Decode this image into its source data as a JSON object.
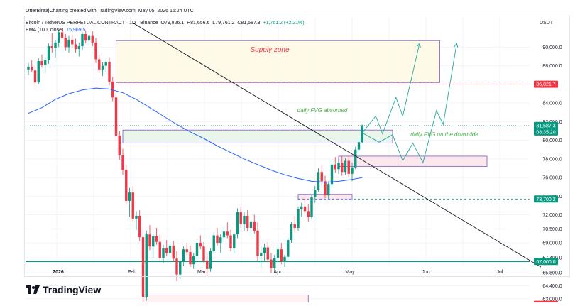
{
  "header": {
    "credit": "OtterBiraajCharting created with TradingView.com, May 05, 2026 15:24 UTC",
    "symbol": "Bitcoin / TetherUS PERPETUAL CONTRACT · 1D · Binance",
    "open_label": "O",
    "open": "79,826.1",
    "high_label": "H",
    "high": "81,656.6",
    "low_label": "L",
    "low": "79,761.2",
    "close_label": "C",
    "close": "81,587.3",
    "change": "+1,761.2 (+2.21%)",
    "ema_label": "EMA (100, close)",
    "ema_value": "75,969.5",
    "currency": "USDT"
  },
  "brand": {
    "name": "TradingView",
    "logo_icon": "tradingview-logo-icon"
  },
  "colors": {
    "up": "#089981",
    "down": "#f23645",
    "ema": "#2962ff",
    "trendline": "#131722",
    "support": "#089981",
    "box_border": "#7e57c2",
    "supply_text": "#f23645",
    "fvg_text": "#4caf50",
    "path": "#26a69a"
  },
  "chart_data": {
    "type": "candlestick",
    "timeframe": "1D",
    "x_tick_labels": [
      "2026",
      "Feb",
      "Mar",
      "Apr",
      "May",
      "Jun",
      "Jul"
    ],
    "y_tick_labels": [
      "90,000.0",
      "88,000.0",
      "84,000.0",
      "82,000.0",
      "80,000.0",
      "78,000.0",
      "76,000.0",
      "74,000.0",
      "72,000.0",
      "70,500.0",
      "69,000.0",
      "67,400.0",
      "65,800.0",
      "64,400.0",
      "63,000.0"
    ],
    "ylim": [
      61800,
      92000
    ],
    "price_labels": [
      {
        "text": "86,021.7",
        "value": 86021.7,
        "color": "#f23645"
      },
      {
        "text": "81,587.3",
        "value": 81587.3,
        "color": "#089981"
      },
      {
        "text": "08:35:20",
        "value": 80900,
        "color": "#089981"
      },
      {
        "text": "73,700.2",
        "value": 73700.2,
        "color": "#089981"
      },
      {
        "text": "67,000.0",
        "value": 67000,
        "color": "#089981"
      },
      {
        "text": "62,401.7",
        "value": 62401.7,
        "color": "#f23645"
      }
    ],
    "candles": [
      [
        87600,
        88300,
        87000,
        87900
      ],
      [
        87900,
        88600,
        87300,
        87500
      ],
      [
        87500,
        88000,
        85800,
        86200
      ],
      [
        86200,
        88800,
        86000,
        88500
      ],
      [
        88500,
        89200,
        87800,
        88100
      ],
      [
        88100,
        88900,
        87200,
        88600
      ],
      [
        88600,
        90400,
        88200,
        90100
      ],
      [
        90100,
        91500,
        89400,
        89900
      ],
      [
        89900,
        90800,
        88900,
        90500
      ],
      [
        90500,
        91900,
        90000,
        91600
      ],
      [
        91600,
        92000,
        90700,
        91000
      ],
      [
        91000,
        91400,
        89600,
        90000
      ],
      [
        90000,
        91200,
        89400,
        90800
      ],
      [
        90800,
        91300,
        89900,
        90300
      ],
      [
        90300,
        90900,
        89400,
        89800
      ],
      [
        89800,
        90500,
        89000,
        90100
      ],
      [
        90100,
        91600,
        89700,
        91400
      ],
      [
        91400,
        91800,
        90400,
        90700
      ],
      [
        90700,
        91500,
        90200,
        91200
      ],
      [
        91200,
        91700,
        90100,
        90500
      ],
      [
        90500,
        91000,
        88300,
        88700
      ],
      [
        88700,
        89200,
        87200,
        87600
      ],
      [
        87600,
        88400,
        86900,
        88000
      ],
      [
        88000,
        88700,
        87300,
        88400
      ],
      [
        88400,
        88900,
        85900,
        86300
      ],
      [
        86300,
        86800,
        84200,
        84600
      ],
      [
        84600,
        85100,
        80000,
        80500
      ],
      [
        80500,
        81000,
        77900,
        78400
      ],
      [
        78400,
        79100,
        76300,
        76800
      ],
      [
        76800,
        77300,
        73100,
        73500
      ],
      [
        73500,
        74900,
        71800,
        74400
      ],
      [
        74400,
        75100,
        71200,
        71600
      ],
      [
        71600,
        72400,
        70400,
        71900
      ],
      [
        71900,
        72500,
        69200,
        69600
      ],
      [
        69600,
        70400,
        62400,
        63200
      ],
      [
        63200,
        70300,
        62800,
        69900
      ],
      [
        69900,
        70900,
        68200,
        68600
      ],
      [
        68600,
        70000,
        67400,
        69700
      ],
      [
        69700,
        70600,
        68800,
        69100
      ],
      [
        69100,
        69900,
        67100,
        67400
      ],
      [
        67400,
        68800,
        66800,
        68400
      ],
      [
        68400,
        69300,
        67600,
        67900
      ],
      [
        67900,
        68900,
        67200,
        68700
      ],
      [
        68700,
        69200,
        67000,
        67300
      ],
      [
        67300,
        68100,
        64900,
        65600
      ],
      [
        65600,
        67400,
        65100,
        67000
      ],
      [
        67000,
        68600,
        66500,
        68300
      ],
      [
        68300,
        69000,
        67600,
        68000
      ],
      [
        68000,
        68700,
        66400,
        66700
      ],
      [
        66700,
        67900,
        66200,
        67600
      ],
      [
        67600,
        69300,
        67100,
        69000
      ],
      [
        69000,
        69800,
        68300,
        68600
      ],
      [
        68600,
        69100,
        66800,
        67100
      ],
      [
        67100,
        68000,
        65400,
        66200
      ],
      [
        66200,
        68400,
        65900,
        68100
      ],
      [
        68100,
        70100,
        67800,
        69800
      ],
      [
        69800,
        70600,
        68700,
        69000
      ],
      [
        69000,
        69900,
        67900,
        69600
      ],
      [
        69600,
        70700,
        69100,
        70200
      ],
      [
        70200,
        71200,
        69500,
        69800
      ],
      [
        69800,
        70400,
        68100,
        68400
      ],
      [
        68400,
        70100,
        67900,
        69900
      ],
      [
        69900,
        72700,
        69500,
        72300
      ],
      [
        72300,
        72900,
        70600,
        71000
      ],
      [
        71000,
        72300,
        70300,
        71900
      ],
      [
        71900,
        72500,
        70200,
        70600
      ],
      [
        70600,
        71600,
        69800,
        71300
      ],
      [
        71300,
        72000,
        70000,
        70300
      ],
      [
        70300,
        71200,
        67100,
        67600
      ],
      [
        67600,
        68600,
        66300,
        67900
      ],
      [
        67900,
        68900,
        67100,
        68500
      ],
      [
        68500,
        69100,
        66900,
        67200
      ],
      [
        67200,
        67900,
        65800,
        66300
      ],
      [
        66300,
        67700,
        65900,
        67400
      ],
      [
        67400,
        68700,
        66900,
        68300
      ],
      [
        68300,
        69000,
        66700,
        67000
      ],
      [
        67000,
        67700,
        66400,
        67500
      ],
      [
        67500,
        69600,
        67200,
        69300
      ],
      [
        69300,
        71300,
        69000,
        71000
      ],
      [
        71000,
        71900,
        70100,
        70600
      ],
      [
        70600,
        72900,
        70300,
        72600
      ],
      [
        72600,
        73300,
        71800,
        72900
      ],
      [
        72900,
        73900,
        72000,
        72400
      ],
      [
        72400,
        73100,
        71300,
        71800
      ],
      [
        71800,
        74200,
        71600,
        73900
      ],
      [
        73900,
        75100,
        73300,
        74700
      ],
      [
        74700,
        77000,
        74500,
        76600
      ],
      [
        76600,
        77300,
        75200,
        75600
      ],
      [
        75600,
        76200,
        73800,
        74100
      ],
      [
        74100,
        75600,
        73700,
        75300
      ],
      [
        75300,
        77800,
        74900,
        77400
      ],
      [
        77400,
        78200,
        76500,
        76900
      ],
      [
        76900,
        78000,
        76400,
        77600
      ],
      [
        77600,
        78300,
        76200,
        76600
      ],
      [
        76600,
        78100,
        76300,
        77800
      ],
      [
        77800,
        78400,
        76000,
        76400
      ],
      [
        76400,
        77600,
        75600,
        77100
      ],
      [
        77100,
        79300,
        76900,
        79000
      ],
      [
        79000,
        80300,
        78500,
        79800
      ],
      [
        79800,
        81700,
        79700,
        81600
      ]
    ],
    "ema": [
      [
        0,
        82900
      ],
      [
        4,
        83500
      ],
      [
        8,
        84400
      ],
      [
        12,
        85000
      ],
      [
        16,
        85400
      ],
      [
        20,
        85600
      ],
      [
        24,
        85500
      ],
      [
        28,
        85100
      ],
      [
        32,
        84400
      ],
      [
        36,
        83500
      ],
      [
        40,
        82600
      ],
      [
        44,
        81700
      ],
      [
        48,
        80900
      ],
      [
        52,
        80200
      ],
      [
        56,
        79400
      ],
      [
        60,
        78700
      ],
      [
        64,
        78000
      ],
      [
        68,
        77400
      ],
      [
        72,
        76800
      ],
      [
        76,
        76300
      ],
      [
        80,
        75900
      ],
      [
        84,
        75600
      ],
      [
        88,
        75500
      ],
      [
        92,
        75600
      ],
      [
        96,
        75800
      ],
      [
        99,
        76000
      ]
    ],
    "trendline": {
      "start": [
        31,
        92600
      ],
      "end": [
        152,
        66400
      ]
    },
    "support": {
      "value": 67000,
      "label": "67,000.0"
    },
    "support_dashed": {
      "value": 73700.2,
      "start": 80
    },
    "resistance_dashed": {
      "value": 86021.7,
      "start": 26
    },
    "low_dashed": {
      "value": 62401.7,
      "start": 47
    },
    "zones": [
      {
        "name": "supply-zone",
        "label": "Supply zone",
        "x0": 26,
        "x1": 122,
        "y0": 86200,
        "y1": 90700,
        "fill": "#fff9e6"
      },
      {
        "name": "daily-fvg-absorbed",
        "label": "daily FVG absorbed",
        "x0": 28,
        "x1": 108,
        "y0": 79700,
        "y1": 81100,
        "fill": "#e8f5e9"
      },
      {
        "name": "daily-fvg-downside",
        "label": "daily FVG on the downside",
        "x0": 92,
        "x1": 136,
        "y0": 77200,
        "y1": 78300,
        "fill": "#fce4ec"
      },
      {
        "name": "small-fvg",
        "label": "",
        "x0": 80,
        "x1": 96,
        "y0": 73600,
        "y1": 74200,
        "fill": "#fce4ec"
      },
      {
        "name": "low-box",
        "label": "",
        "x0": 34,
        "x1": 83,
        "y0": 61800,
        "y1": 63400,
        "fill": "#fff0f0"
      }
    ],
    "projection_paths": [
      [
        [
          99,
          80800
        ],
        [
          103,
          82600
        ],
        [
          105,
          80700
        ],
        [
          109,
          84600
        ],
        [
          111,
          82600
        ],
        [
          116,
          90400
        ]
      ],
      [
        [
          99,
          80800
        ],
        [
          104,
          79800
        ],
        [
          108,
          80600
        ],
        [
          111,
          77800
        ],
        [
          114,
          79700
        ],
        [
          117,
          77600
        ],
        [
          121,
          83200
        ],
        [
          123,
          81700
        ],
        [
          127,
          90400
        ]
      ]
    ]
  }
}
